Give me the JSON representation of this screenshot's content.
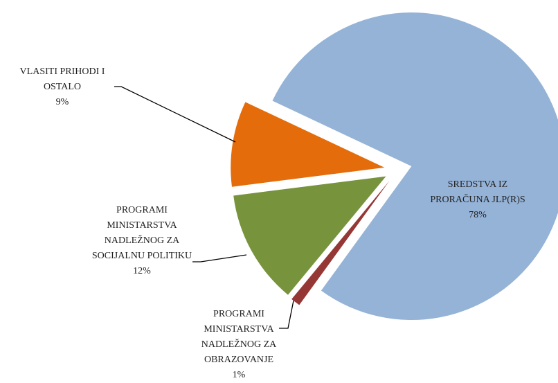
{
  "chart_data": {
    "type": "pie",
    "categories": [
      "SREDSTVA IZ PRORAČUNA JLP(R)S",
      "PROGRAMI MINISTARSTVA NADLEŽNOG ZA OBRAZOVANJE",
      "PROGRAMI MINISTARSTVA NADLEŽNOG ZA SOCIJALNU POLITIKU",
      "VLASITI PRIHODI I OSTALO"
    ],
    "values": [
      78,
      1,
      12,
      9
    ],
    "value_labels": [
      "78%",
      "1%",
      "12%",
      "9%"
    ],
    "colors": [
      "#95b3d7",
      "#953735",
      "#77933c",
      "#e46c0a"
    ]
  }
}
